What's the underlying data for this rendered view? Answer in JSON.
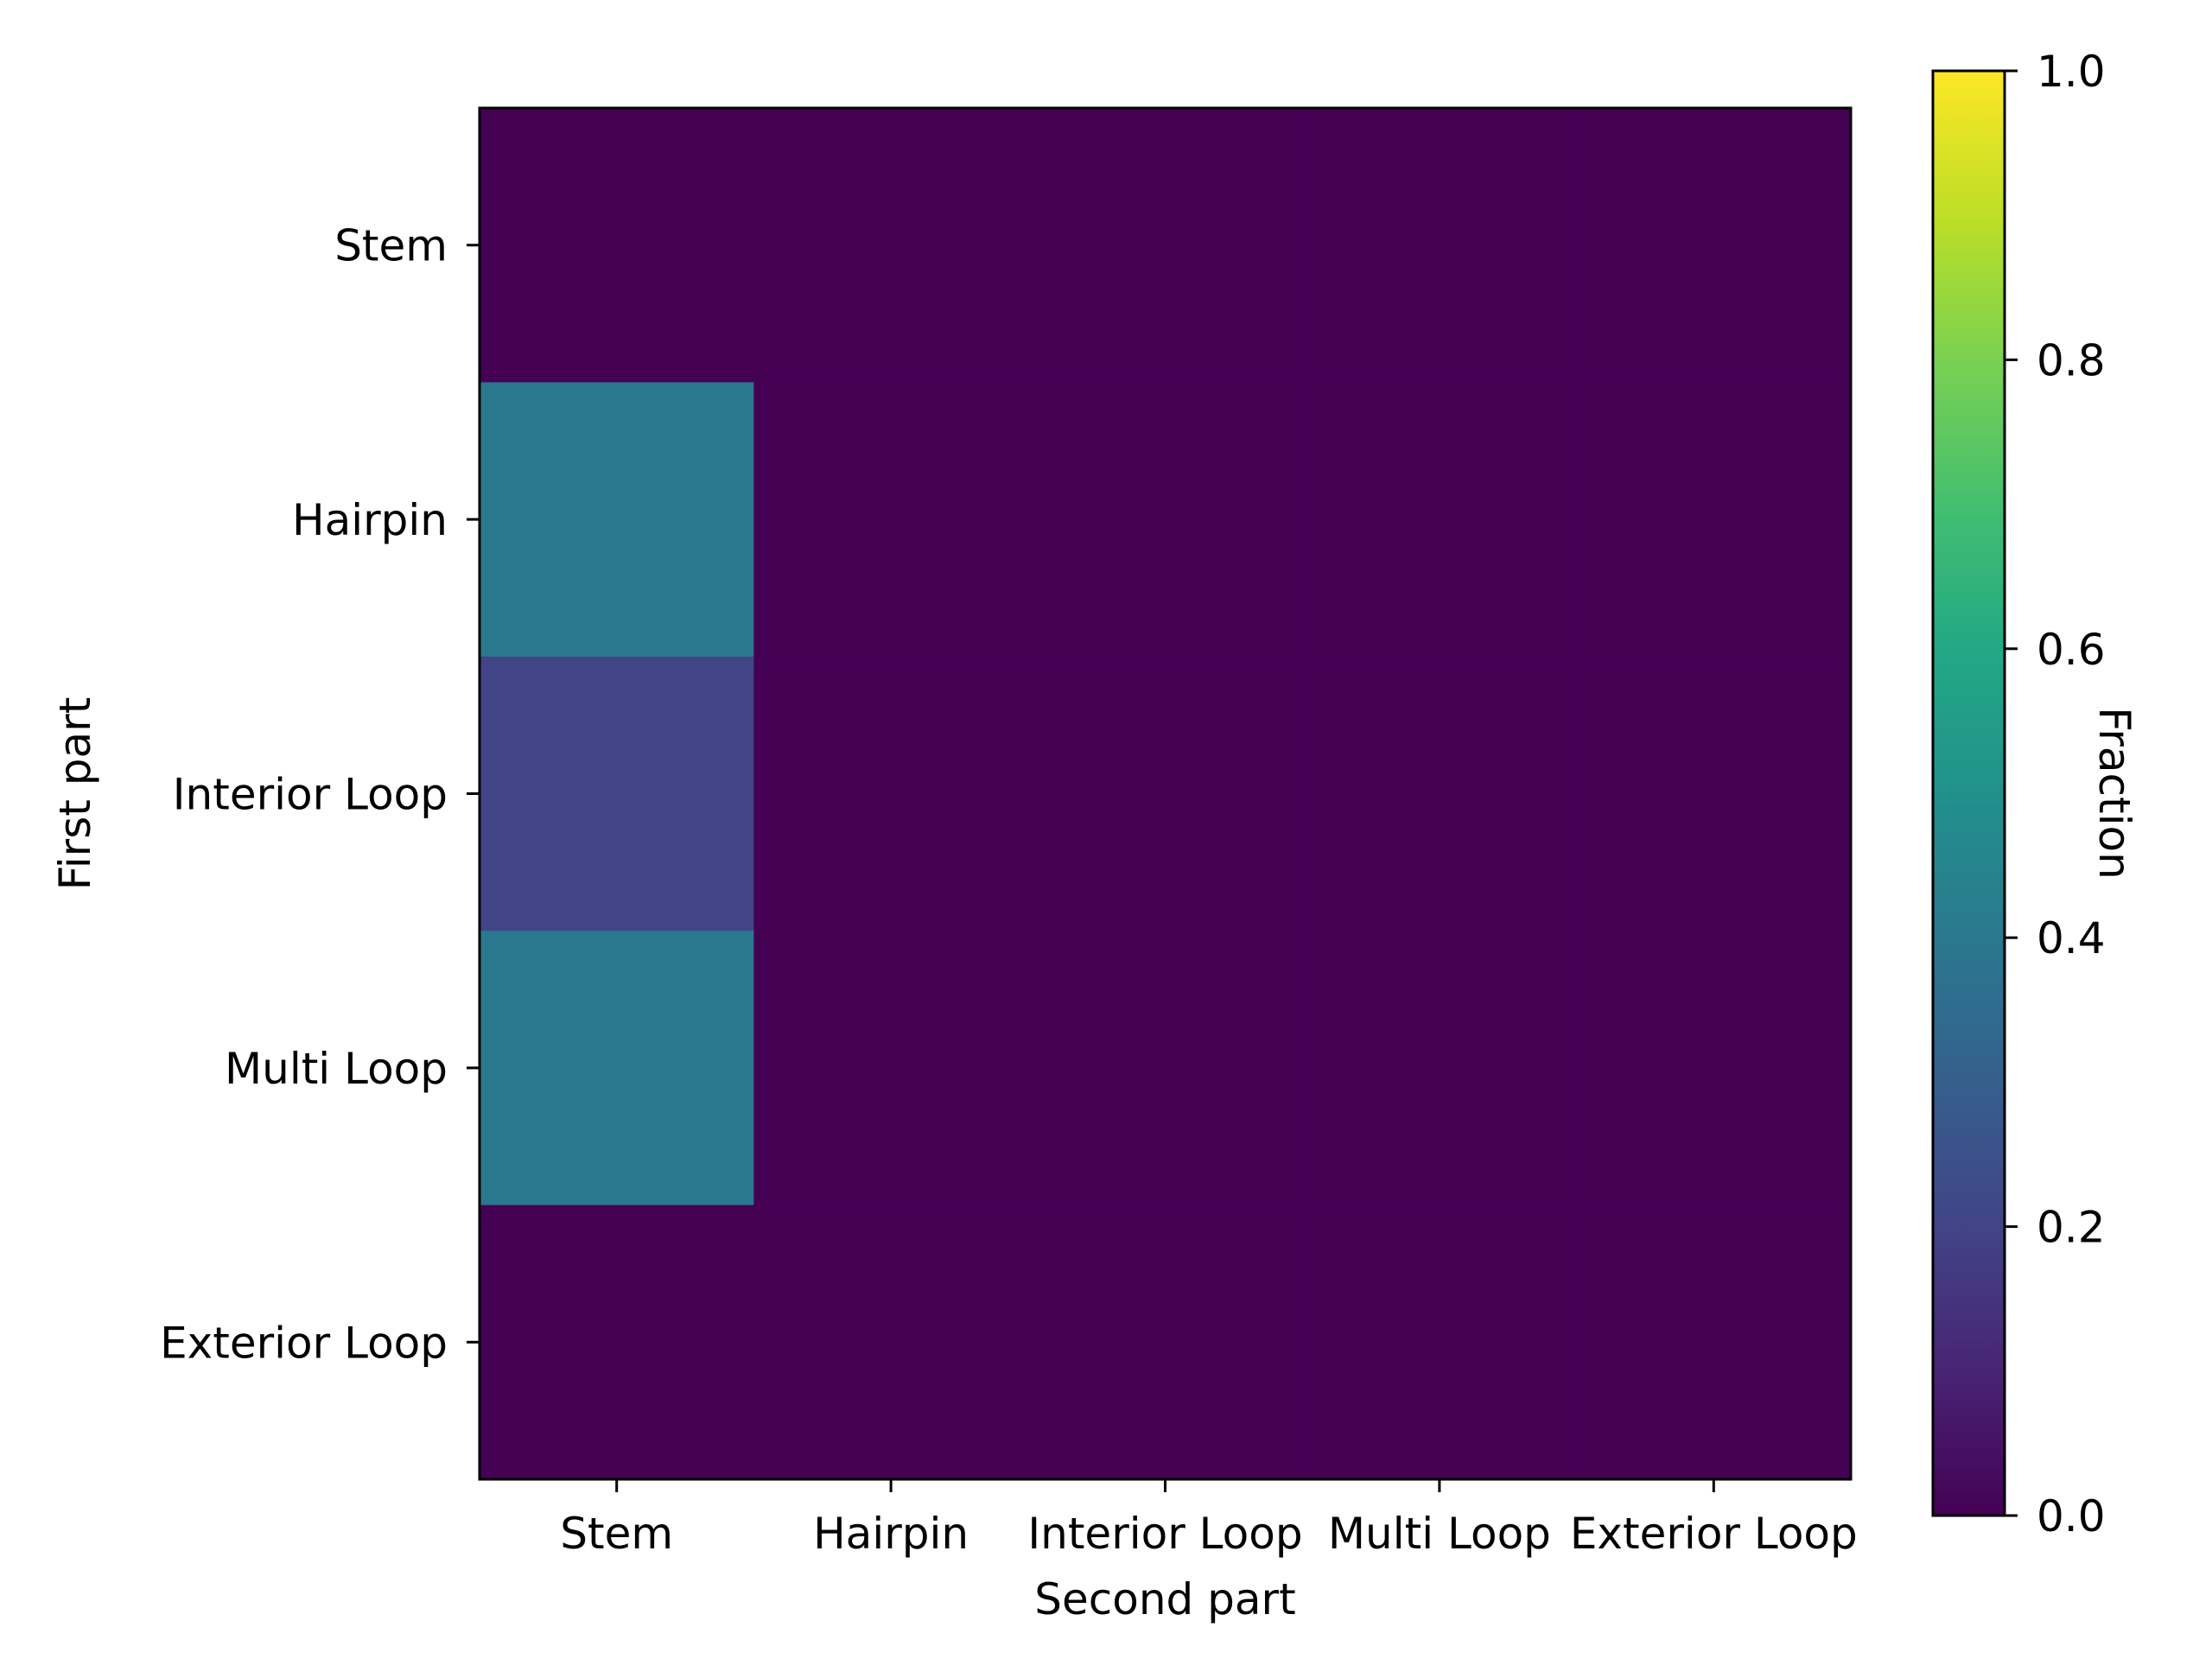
{
  "chart_data": {
    "type": "heatmap",
    "title": "",
    "xlabel": "Second part",
    "ylabel": "First part",
    "x_categories": [
      "Stem",
      "Hairpin",
      "Interior Loop",
      "Multi Loop",
      "Exterior Loop"
    ],
    "y_categories": [
      "Stem",
      "Hairpin",
      "Interior Loop",
      "Multi Loop",
      "Exterior Loop"
    ],
    "values": [
      [
        0.0,
        0.0,
        0.0,
        0.0,
        0.0
      ],
      [
        0.4,
        0.0,
        0.0,
        0.0,
        0.0
      ],
      [
        0.2,
        0.0,
        0.0,
        0.0,
        0.0
      ],
      [
        0.4,
        0.0,
        0.0,
        0.0,
        0.0
      ],
      [
        0.0,
        0.0,
        0.0,
        0.0,
        0.0
      ]
    ],
    "colormap": "viridis",
    "colorbar": {
      "label": "Fraction",
      "range": [
        0.0,
        1.0
      ],
      "ticks": [
        "0.0",
        "0.2",
        "0.4",
        "0.6",
        "0.8",
        "1.0"
      ]
    },
    "grid": false
  }
}
